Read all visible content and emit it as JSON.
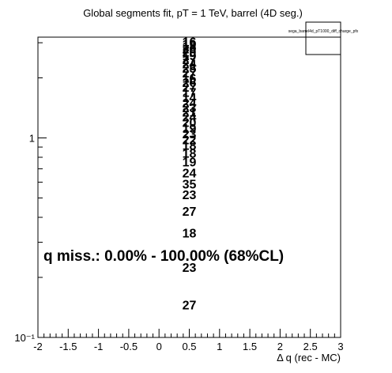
{
  "chart_data": {
    "type": "bar",
    "title": "Global segments fit, pT = 1 TeV, barrel (4D seg.)",
    "xlabel": "Δ q (rec - MC)",
    "ylabel": "",
    "xlim": [
      -2,
      3
    ],
    "ylim": [
      0.1,
      3.2
    ],
    "y_scale": "log",
    "x_ticks": [
      -2,
      -1.5,
      -1,
      -0.5,
      0,
      0.5,
      1,
      1.5,
      2,
      2.5,
      3
    ],
    "x_tick_labels": [
      "-2",
      "-1.5",
      "-1",
      "-0.5",
      "0",
      "0.5",
      "1",
      "1.5",
      "2",
      "2.5",
      "3"
    ],
    "y_ticks": [
      1,
      0.1
    ],
    "y_tick_labels": [
      "1",
      "10⁻¹"
    ],
    "grid": false,
    "legend": {
      "entries": [
        "sega_barrel4d_pT1000_diff_charge_pfx"
      ],
      "placement": "top-right"
    },
    "bin_x": 0.5,
    "labels": [
      {
        "text": "16",
        "y": 3.05
      },
      {
        "text": "19",
        "y": 2.96
      },
      {
        "text": "18",
        "y": 2.88
      },
      {
        "text": "20",
        "y": 2.8
      },
      {
        "text": "20",
        "y": 2.7
      },
      {
        "text": "19",
        "y": 2.6
      },
      {
        "text": "27",
        "y": 2.48
      },
      {
        "text": "24",
        "y": 2.36
      },
      {
        "text": "25",
        "y": 2.24
      },
      {
        "text": "27",
        "y": 2.12
      },
      {
        "text": "16",
        "y": 2.0
      },
      {
        "text": "26",
        "y": 1.9
      },
      {
        "text": "27",
        "y": 1.8
      },
      {
        "text": "17",
        "y": 1.7
      },
      {
        "text": "14",
        "y": 1.6
      },
      {
        "text": "24",
        "y": 1.5
      },
      {
        "text": "23",
        "y": 1.42
      },
      {
        "text": "21",
        "y": 1.35
      },
      {
        "text": "24",
        "y": 1.28
      },
      {
        "text": "20",
        "y": 1.2
      },
      {
        "text": "19",
        "y": 1.12
      },
      {
        "text": "23",
        "y": 1.05
      },
      {
        "text": "22",
        "y": 0.98
      },
      {
        "text": "18",
        "y": 0.92
      },
      {
        "text": "18",
        "y": 0.84
      },
      {
        "text": "19",
        "y": 0.76
      },
      {
        "text": "24",
        "y": 0.67
      },
      {
        "text": "35",
        "y": 0.59
      },
      {
        "text": "23",
        "y": 0.52
      },
      {
        "text": "27",
        "y": 0.43
      },
      {
        "text": "18",
        "y": 0.335
      },
      {
        "text": "23",
        "y": 0.225
      },
      {
        "text": "27",
        "y": 0.146
      }
    ],
    "annotation": "q miss.: 0.00% - 100.00% (68%CL)"
  }
}
